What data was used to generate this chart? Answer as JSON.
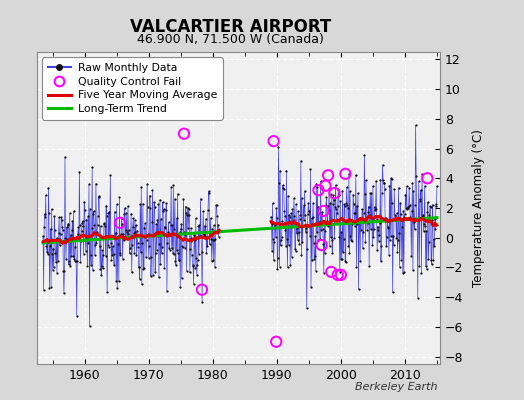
{
  "title": "VALCARTIER AIRPORT",
  "subtitle": "46.900 N, 71.500 W (Canada)",
  "ylabel": "Temperature Anomaly (°C)",
  "credit": "Berkeley Earth",
  "ylim": [
    -8.5,
    12.5
  ],
  "yticks": [
    -8,
    -6,
    -4,
    -2,
    0,
    2,
    4,
    6,
    8,
    10,
    12
  ],
  "xlim": [
    1952.5,
    2015.5
  ],
  "xticks": [
    1960,
    1970,
    1980,
    1990,
    2000,
    2010
  ],
  "bg_color": "#d8d8d8",
  "plot_bg_color": "#f0f0f0",
  "grid_color": "#ffffff",
  "raw_line_color": "#4444dd",
  "raw_dot_color": "#111111",
  "moving_avg_color": "#dd0000",
  "trend_color": "#00bb00",
  "qc_fail_color": "#ff00ff",
  "legend_items": [
    "Raw Monthly Data",
    "Quality Control Fail",
    "Five Year Moving Average",
    "Long-Term Trend"
  ],
  "years_start": 1953.5,
  "years_end": 2015.0,
  "gap_start": 1981.0,
  "gap_end": 1989.0,
  "trend_x": [
    1953.5,
    2015.0
  ],
  "trend_y": [
    -0.35,
    1.35
  ],
  "noise_std": 1.7,
  "seed": 17
}
